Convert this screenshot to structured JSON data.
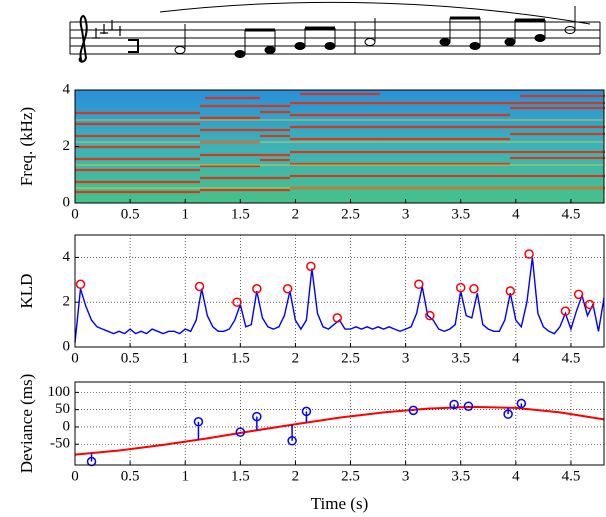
{
  "chart_data": [
    {
      "type": "spectrogram",
      "ylabel": "Freq. (kHz)",
      "xlim": [
        0,
        4.8
      ],
      "xticks": [
        0,
        0.5,
        1,
        1.5,
        2,
        2.5,
        3,
        3.5,
        4,
        4.5
      ],
      "ylim": [
        0,
        4
      ],
      "yticks": [
        0,
        2,
        4
      ],
      "grid": false
    },
    {
      "type": "line",
      "ylabel": "KLD",
      "xlim": [
        0,
        4.8
      ],
      "xticks": [
        0,
        0.5,
        1,
        1.5,
        2,
        2.5,
        3,
        3.5,
        4,
        4.5
      ],
      "ylim": [
        0,
        5
      ],
      "yticks": [
        0,
        2,
        4
      ],
      "grid": true,
      "x": [
        0,
        0.05,
        0.1,
        0.15,
        0.2,
        0.25,
        0.3,
        0.35,
        0.4,
        0.45,
        0.5,
        0.55,
        0.6,
        0.65,
        0.7,
        0.75,
        0.8,
        0.85,
        0.9,
        0.95,
        1,
        1.05,
        1.1,
        1.15,
        1.2,
        1.25,
        1.3,
        1.35,
        1.4,
        1.45,
        1.5,
        1.55,
        1.6,
        1.65,
        1.7,
        1.75,
        1.8,
        1.85,
        1.9,
        1.95,
        2,
        2.05,
        2.1,
        2.15,
        2.2,
        2.25,
        2.3,
        2.35,
        2.4,
        2.45,
        2.5,
        2.55,
        2.6,
        2.65,
        2.7,
        2.75,
        2.8,
        2.85,
        2.9,
        2.95,
        3,
        3.05,
        3.1,
        3.15,
        3.2,
        3.25,
        3.3,
        3.35,
        3.4,
        3.45,
        3.5,
        3.55,
        3.6,
        3.65,
        3.7,
        3.75,
        3.8,
        3.85,
        3.9,
        3.95,
        4,
        4.05,
        4.1,
        4.15,
        4.2,
        4.25,
        4.3,
        4.35,
        4.4,
        4.45,
        4.5,
        4.55,
        4.6,
        4.65,
        4.7,
        4.75,
        4.8
      ],
      "series": [
        {
          "color": "#0000ff",
          "style": "line",
          "values": [
            0.2,
            2.6,
            1.8,
            1.2,
            0.9,
            0.8,
            0.7,
            0.6,
            0.7,
            0.6,
            0.8,
            0.6,
            0.7,
            0.6,
            0.8,
            0.7,
            0.6,
            0.7,
            0.7,
            0.6,
            0.8,
            0.7,
            1.2,
            2.6,
            1.4,
            0.9,
            0.7,
            0.7,
            0.8,
            1.2,
            1.9,
            0.9,
            1.0,
            2.5,
            1.3,
            0.9,
            0.8,
            0.9,
            1.4,
            2.5,
            1.2,
            0.8,
            1.2,
            3.5,
            1.5,
            0.9,
            0.8,
            1.0,
            1.2,
            0.8,
            0.8,
            0.9,
            0.8,
            0.9,
            0.8,
            0.9,
            0.8,
            0.9,
            0.8,
            0.7,
            0.8,
            0.9,
            1.5,
            2.7,
            1.4,
            1.2,
            0.8,
            0.7,
            0.8,
            1.0,
            2.5,
            1.4,
            1.3,
            2.4,
            1.0,
            0.8,
            0.7,
            0.7,
            1.2,
            2.4,
            1.2,
            0.9,
            2.0,
            4.0,
            1.5,
            0.9,
            0.7,
            0.6,
            0.9,
            1.5,
            0.8,
            1.6,
            2.3,
            1.4,
            1.9,
            0.7,
            2.2
          ]
        },
        {
          "color": "#ff0000",
          "style": "markers",
          "x": [
            0.05,
            1.13,
            1.47,
            1.65,
            1.93,
            2.14,
            2.38,
            3.12,
            3.22,
            3.5,
            3.62,
            3.95,
            4.12,
            4.45,
            4.57,
            4.67
          ],
          "values": [
            2.8,
            2.7,
            2.0,
            2.6,
            2.6,
            3.6,
            1.3,
            2.8,
            1.4,
            2.65,
            2.6,
            2.5,
            4.15,
            1.6,
            2.35,
            1.9
          ]
        }
      ]
    },
    {
      "type": "stem",
      "ylabel": "Deviance (ms)",
      "xlabel": "Time (s)",
      "xlim": [
        0,
        4.8
      ],
      "xticks": [
        0,
        0.5,
        1,
        1.5,
        2,
        2.5,
        3,
        3.5,
        4,
        4.5
      ],
      "ylim": [
        -110,
        130
      ],
      "yticks": [
        -50,
        0,
        50,
        100
      ],
      "grid": true,
      "series": [
        {
          "color": "#ff0000",
          "style": "line",
          "x": [
            0,
            0.4,
            0.8,
            1.2,
            1.6,
            2.0,
            2.4,
            2.8,
            3.2,
            3.6,
            4.0,
            4.4,
            4.8
          ],
          "values": [
            -80,
            -68,
            -52,
            -33,
            -12,
            8,
            27,
            42,
            53,
            58,
            55,
            42,
            22
          ]
        },
        {
          "color": "#0000ff",
          "style": "stem",
          "x": [
            0.15,
            1.12,
            1.5,
            1.65,
            1.97,
            2.1,
            3.07,
            3.44,
            3.57,
            3.93,
            4.05
          ],
          "values": [
            -100,
            15,
            -15,
            30,
            -40,
            45,
            48,
            65,
            60,
            37,
            68
          ]
        }
      ]
    }
  ]
}
